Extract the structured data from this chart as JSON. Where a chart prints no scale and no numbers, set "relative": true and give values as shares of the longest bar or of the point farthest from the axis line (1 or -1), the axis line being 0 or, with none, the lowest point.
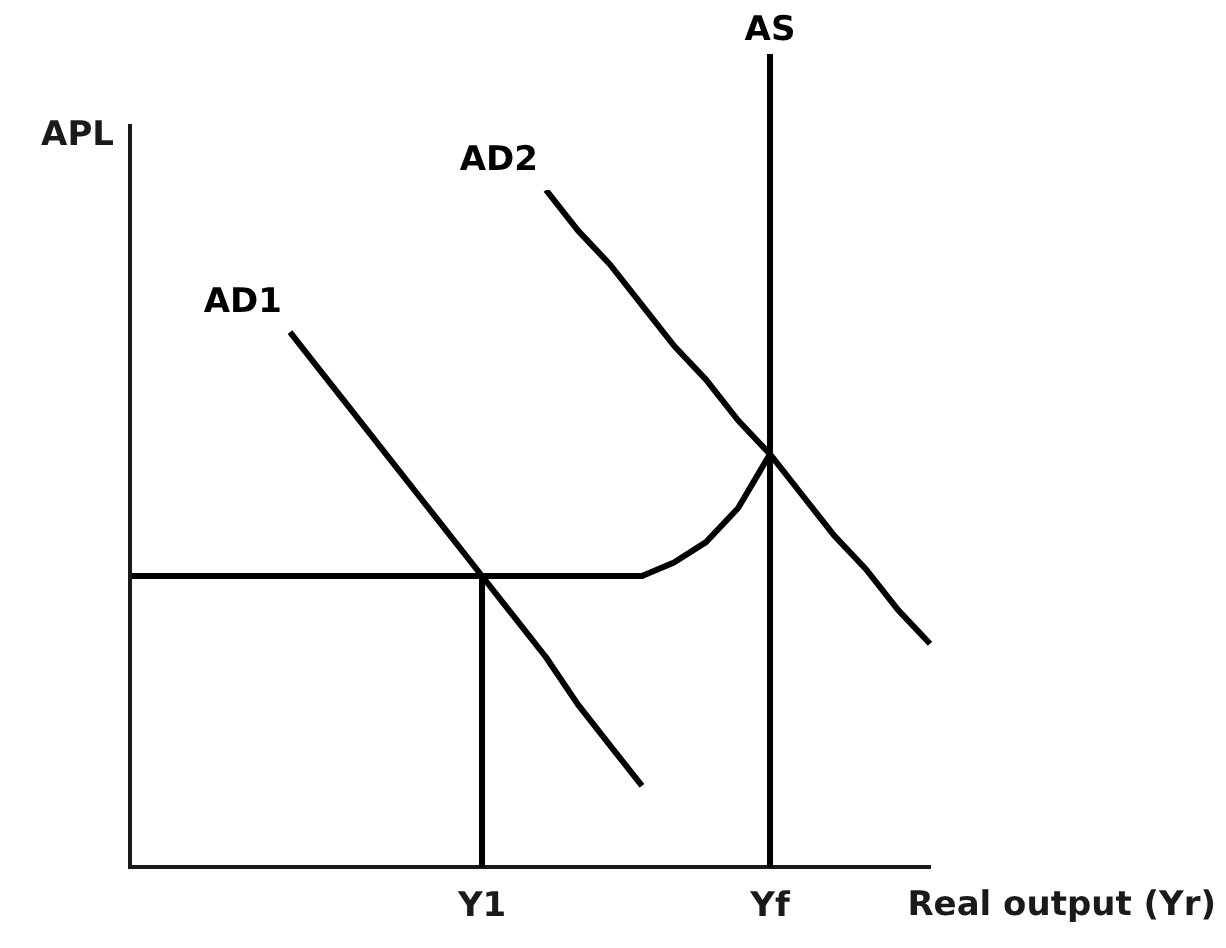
{
  "chart_data": {
    "type": "line",
    "relative": true,
    "xlabel": "Real output (Yr)",
    "ylabel": "APL",
    "categories": [
      null,
      null,
      null,
      null,
      null,
      null,
      null,
      null,
      null,
      null,
      null,
      "Y1",
      null,
      null,
      null,
      null,
      null,
      null,
      null,
      null,
      "Yf",
      null,
      null,
      null,
      null,
      null
    ],
    "series": [
      {
        "name": "AD1",
        "color": "#000000",
        "values": [
          null,
          null,
          null,
          null,
          null,
          0.79,
          0.73,
          0.67,
          0.61,
          0.55,
          0.49,
          0.43,
          0.37,
          0.31,
          0.24,
          0.18,
          0.12,
          null,
          null,
          null,
          null,
          null,
          null,
          null,
          null,
          null
        ]
      },
      {
        "name": "AD2",
        "color": "#000000",
        "values": [
          null,
          null,
          null,
          null,
          null,
          null,
          null,
          null,
          null,
          null,
          null,
          null,
          null,
          1.0,
          0.94,
          0.89,
          0.83,
          0.77,
          0.72,
          0.66,
          0.61,
          0.55,
          0.49,
          0.44,
          0.38,
          0.33
        ]
      },
      {
        "color": "#000000",
        "values": [
          0.43,
          0.43,
          0.43,
          0.43,
          0.43,
          0.43,
          0.43,
          0.43,
          0.43,
          0.43,
          0.43,
          0.43,
          0.43,
          0.43,
          0.43,
          0.43,
          0.43,
          0.45,
          0.48,
          0.53,
          0.61,
          null,
          null,
          null,
          null,
          null
        ]
      },
      {
        "color": "#000000",
        "x": [
          "Y1",
          "Y1"
        ],
        "values": [
          0,
          0.43
        ]
      }
    ],
    "ref_lines": [
      {
        "axis": "x",
        "value": "Yf",
        "label": "AS",
        "color": "#000000"
      }
    ],
    "grid": false,
    "legend": false,
    "marker": "none",
    "line_style": "solid"
  }
}
